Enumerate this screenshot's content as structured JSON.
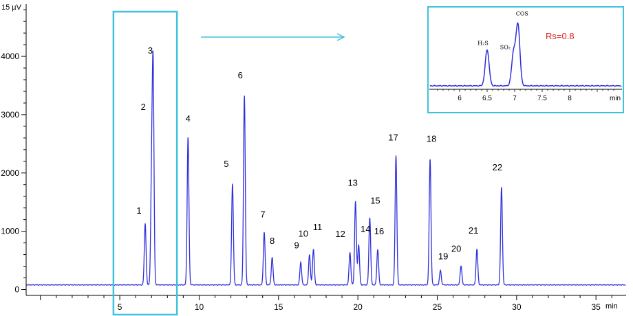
{
  "colors": {
    "trace": "#2f2fdc",
    "highlight": "#3ec3dc",
    "axis": "#000000",
    "note": "#e0201b"
  },
  "chart_data": [
    {
      "type": "line",
      "ylabel": "15 µV",
      "xlabel": "min",
      "xlim": [
        0,
        37
      ],
      "ylim": [
        0,
        4000
      ],
      "x_ticks": [
        5,
        10,
        15,
        20,
        25,
        30,
        35
      ],
      "y_ticks": [
        0,
        1000,
        2000,
        3000,
        4000
      ],
      "baseline": 80,
      "peaks": [
        {
          "label": "1",
          "rt": 6.6,
          "height": 1140
        },
        {
          "label": "2",
          "rt": 7.0,
          "height": 1760
        },
        {
          "label": "3",
          "rt": 7.1,
          "height": 3720
        },
        {
          "label": "4",
          "rt": 9.3,
          "height": 2620
        },
        {
          "label": "5",
          "rt": 12.1,
          "height": 1820
        },
        {
          "label": "6",
          "rt": 12.85,
          "height": 3340
        },
        {
          "label": "7",
          "rt": 14.1,
          "height": 980
        },
        {
          "label": "8",
          "rt": 14.6,
          "height": 550
        },
        {
          "label": "9",
          "rt": 16.4,
          "height": 470
        },
        {
          "label": "10",
          "rt": 16.95,
          "height": 600
        },
        {
          "label": "11",
          "rt": 17.2,
          "height": 690
        },
        {
          "label": "12",
          "rt": 19.5,
          "height": 640
        },
        {
          "label": "13",
          "rt": 19.85,
          "height": 1520
        },
        {
          "label": "14",
          "rt": 20.05,
          "height": 770
        },
        {
          "label": "15",
          "rt": 20.75,
          "height": 1240
        },
        {
          "label": "16",
          "rt": 21.25,
          "height": 690
        },
        {
          "label": "17",
          "rt": 22.4,
          "height": 2300
        },
        {
          "label": "18",
          "rt": 24.55,
          "height": 2250
        },
        {
          "label": "19",
          "rt": 25.2,
          "height": 330
        },
        {
          "label": "20",
          "rt": 26.5,
          "height": 410
        },
        {
          "label": "21",
          "rt": 27.5,
          "height": 700
        },
        {
          "label": "22",
          "rt": 29.05,
          "height": 1760
        }
      ],
      "highlight_range": [
        4.6,
        8.6
      ]
    },
    {
      "type": "line",
      "xlabel": "min",
      "xlim": [
        5.5,
        9
      ],
      "x_ticks": [
        6,
        6.5,
        7,
        7.5,
        8
      ],
      "x_tick_labels": [
        "6",
        "6.5",
        "7",
        "7.5",
        "8"
      ],
      "peaks": [
        {
          "label": "H₂S",
          "rt": 6.5,
          "height": 0.52
        },
        {
          "label": "SO₂",
          "rt": 6.98,
          "height": 0.47
        },
        {
          "label": "COS",
          "rt": 7.06,
          "height": 0.86
        }
      ],
      "annotation": "Rs=0.8"
    }
  ]
}
